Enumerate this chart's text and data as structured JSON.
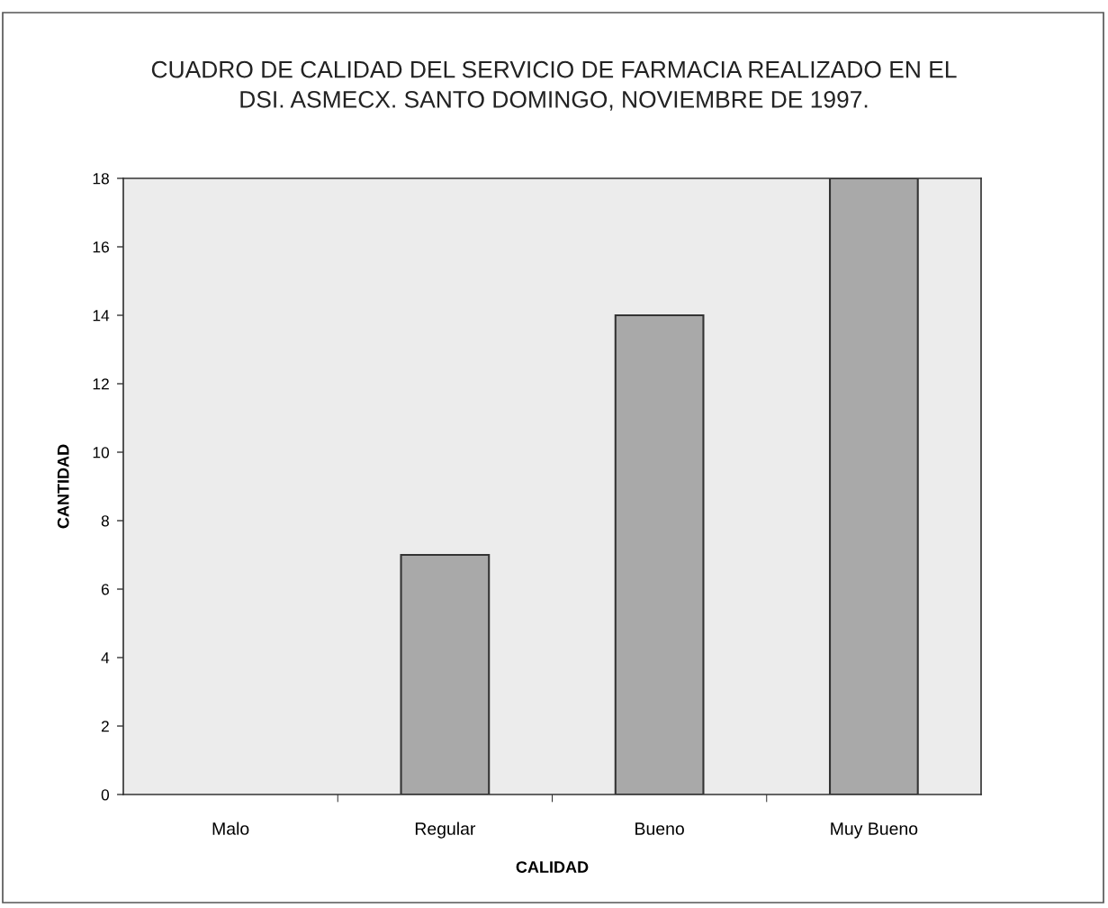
{
  "chart_data": {
    "type": "bar",
    "title": "CUADRO DE CALIDAD DEL SERVICIO DE FARMACIA REALIZADO EN EL\nDSI. ASMECX. SANTO DOMINGO, NOVIEMBRE DE 1997.",
    "xlabel": "CALIDAD",
    "ylabel": "CANTIDAD",
    "categories": [
      "Malo",
      "Regular",
      "Bueno",
      "Muy Bueno"
    ],
    "values": [
      0,
      7,
      14,
      18
    ],
    "color": "#a9a9a9",
    "ylim": [
      0,
      18
    ],
    "yticks": [
      0,
      2,
      4,
      6,
      8,
      10,
      12,
      14,
      16,
      18
    ]
  }
}
